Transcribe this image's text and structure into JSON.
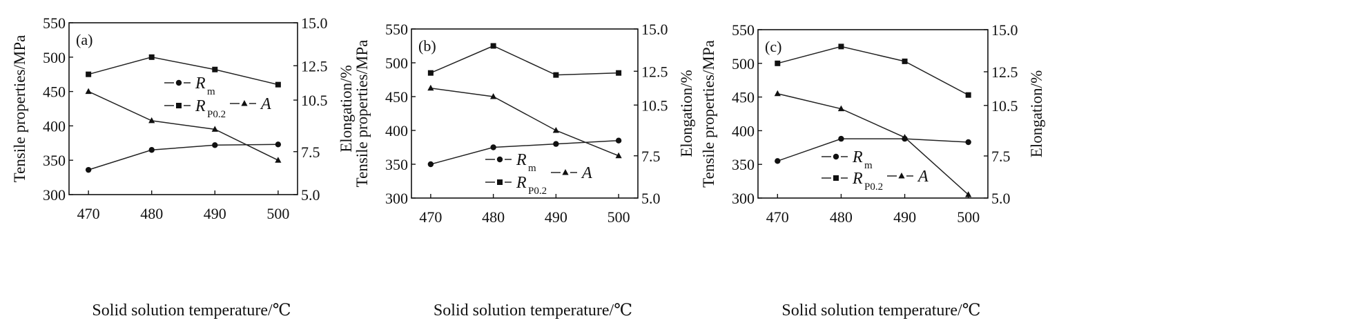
{
  "figure": {
    "x_label": "Solid solution temperature/℃",
    "y_left_label": "Tensile properties/MPa",
    "y_right_label": "Elongation/%"
  },
  "legend_labels": {
    "rm": {
      "main": "R",
      "sub": "m"
    },
    "rp": {
      "main": "R",
      "sub": "P0.2"
    },
    "a": {
      "main": "A",
      "sub": ""
    }
  },
  "chart_data": [
    {
      "type": "line",
      "panel_label": "(a)",
      "x": [
        470,
        480,
        490,
        500
      ],
      "x_ticks": [
        "470",
        "480",
        "490",
        "500"
      ],
      "y_left_ticks": [
        "300",
        "350",
        "400",
        "450",
        "500",
        "550"
      ],
      "y_right_ticks": [
        "5.0",
        "7.5",
        "10.5",
        "12.5",
        "15.0"
      ],
      "ylim_left": [
        300,
        550
      ],
      "ylim_right": [
        5.0,
        15.0
      ],
      "grid": false,
      "series": [
        {
          "key": "rm",
          "marker": "circle",
          "axis": "left",
          "values": [
            336,
            365,
            372,
            373
          ]
        },
        {
          "key": "rp",
          "marker": "square",
          "axis": "left",
          "values": [
            475,
            500,
            482,
            460
          ]
        },
        {
          "key": "a",
          "marker": "triangle",
          "axis": "right",
          "values": [
            11.0,
            9.3,
            8.8,
            7.0
          ]
        }
      ]
    },
    {
      "type": "line",
      "panel_label": "(b)",
      "x": [
        470,
        480,
        490,
        500
      ],
      "x_ticks": [
        "470",
        "480",
        "490",
        "500"
      ],
      "y_left_ticks": [
        "300",
        "350",
        "400",
        "450",
        "500",
        "550"
      ],
      "y_right_ticks": [
        "5.0",
        "7.5",
        "10.5",
        "12.5",
        "15.0"
      ],
      "ylim_left": [
        300,
        550
      ],
      "ylim_right": [
        5.0,
        15.0
      ],
      "grid": false,
      "series": [
        {
          "key": "rm",
          "marker": "circle",
          "axis": "left",
          "values": [
            350,
            375,
            380,
            385
          ]
        },
        {
          "key": "rp",
          "marker": "square",
          "axis": "left",
          "values": [
            485,
            525,
            482,
            485
          ]
        },
        {
          "key": "a",
          "marker": "triangle",
          "axis": "right",
          "values": [
            11.5,
            11.0,
            9.0,
            7.5
          ]
        }
      ]
    },
    {
      "type": "line",
      "panel_label": "(c)",
      "x": [
        470,
        480,
        490,
        500
      ],
      "x_ticks": [
        "470",
        "480",
        "490",
        "500"
      ],
      "y_left_ticks": [
        "300",
        "350",
        "400",
        "450",
        "500",
        "550"
      ],
      "y_right_ticks": [
        "5.0",
        "7.5",
        "10.5",
        "12.5",
        "15.0"
      ],
      "ylim_left": [
        300,
        550
      ],
      "ylim_right": [
        5.0,
        15.0
      ],
      "grid": false,
      "series": [
        {
          "key": "rm",
          "marker": "circle",
          "axis": "left",
          "values": [
            355,
            388,
            388,
            383
          ]
        },
        {
          "key": "rp",
          "marker": "square",
          "axis": "left",
          "values": [
            500,
            525,
            503,
            453
          ]
        },
        {
          "key": "a",
          "marker": "triangle",
          "axis": "right",
          "values": [
            11.2,
            10.3,
            8.6,
            5.2
          ]
        }
      ]
    }
  ]
}
